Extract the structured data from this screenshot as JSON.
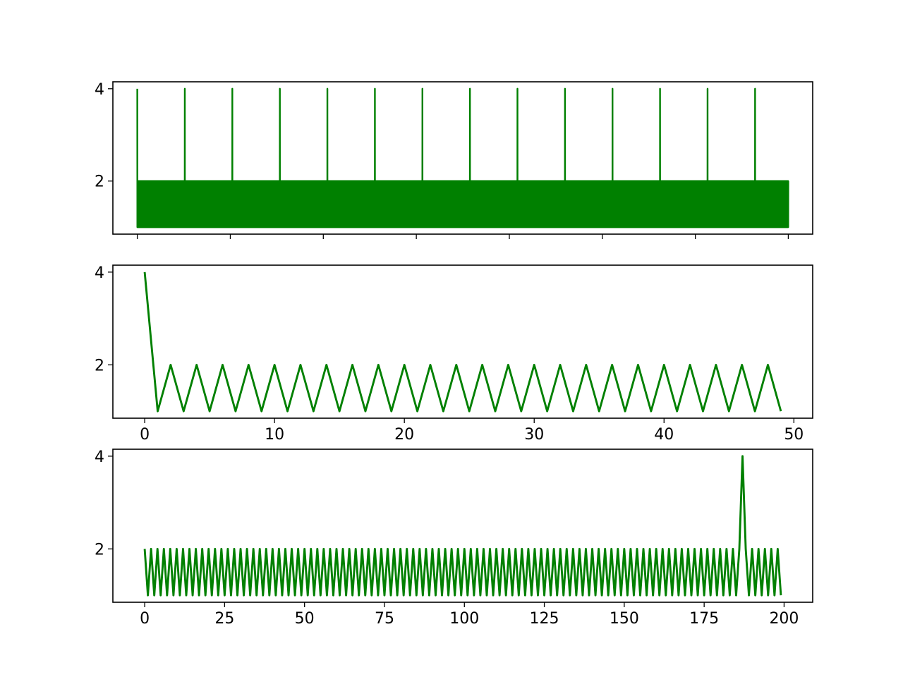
{
  "chart_data": [
    {
      "type": "line",
      "title": "",
      "xlabel": "",
      "ylabel": "",
      "color": "#008000",
      "x_start": 0,
      "x_end": 8000,
      "x_step": 1,
      "period": 2,
      "base_values": [
        2,
        1
      ],
      "spikes": [
        {
          "every": 584,
          "value": 4
        }
      ],
      "xlim": [
        -300,
        8300
      ],
      "ylim": [
        0.85,
        4.15
      ],
      "yticks": [
        2,
        4
      ],
      "xticks_marks": [
        0,
        1143,
        2286,
        3429,
        4572,
        5715,
        6858,
        8000
      ],
      "xtick_labels_shown": false,
      "grid": false,
      "legend": "none"
    },
    {
      "type": "line",
      "title": "",
      "xlabel": "",
      "ylabel": "",
      "color": "#008000",
      "x": [
        0,
        1,
        2,
        3,
        4,
        5,
        6,
        7,
        8,
        9,
        10,
        11,
        12,
        13,
        14,
        15,
        16,
        17,
        18,
        19,
        20,
        21,
        22,
        23,
        24,
        25,
        26,
        27,
        28,
        29,
        30,
        31,
        32,
        33,
        34,
        35,
        36,
        37,
        38,
        39,
        40,
        41,
        42,
        43,
        44,
        45,
        46,
        47,
        48,
        49
      ],
      "y": [
        4,
        1,
        2,
        1,
        2,
        1,
        2,
        1,
        2,
        1,
        2,
        1,
        2,
        1,
        2,
        1,
        2,
        1,
        2,
        1,
        2,
        1,
        2,
        1,
        2,
        1,
        2,
        1,
        2,
        1,
        2,
        1,
        2,
        1,
        2,
        1,
        2,
        1,
        2,
        1,
        2,
        1,
        2,
        1,
        2,
        1,
        2,
        1,
        2,
        1
      ],
      "xlim": [
        -2.45,
        51.45
      ],
      "ylim": [
        0.85,
        4.15
      ],
      "yticks": [
        2,
        4
      ],
      "xticks": [
        0,
        10,
        20,
        30,
        40,
        50
      ],
      "grid": false,
      "legend": "none"
    },
    {
      "type": "line",
      "title": "",
      "xlabel": "",
      "ylabel": "",
      "color": "#008000",
      "x_start": 0,
      "x_end": 199,
      "x_step": 1,
      "period": 2,
      "base_values": [
        2,
        1
      ],
      "spikes": [
        {
          "x": 187,
          "value": 4
        }
      ],
      "xlim": [
        -9.95,
        208.95
      ],
      "ylim": [
        0.85,
        4.15
      ],
      "yticks": [
        2,
        4
      ],
      "xticks": [
        0,
        25,
        50,
        75,
        100,
        125,
        150,
        175,
        200
      ],
      "grid": false,
      "legend": "none"
    }
  ]
}
